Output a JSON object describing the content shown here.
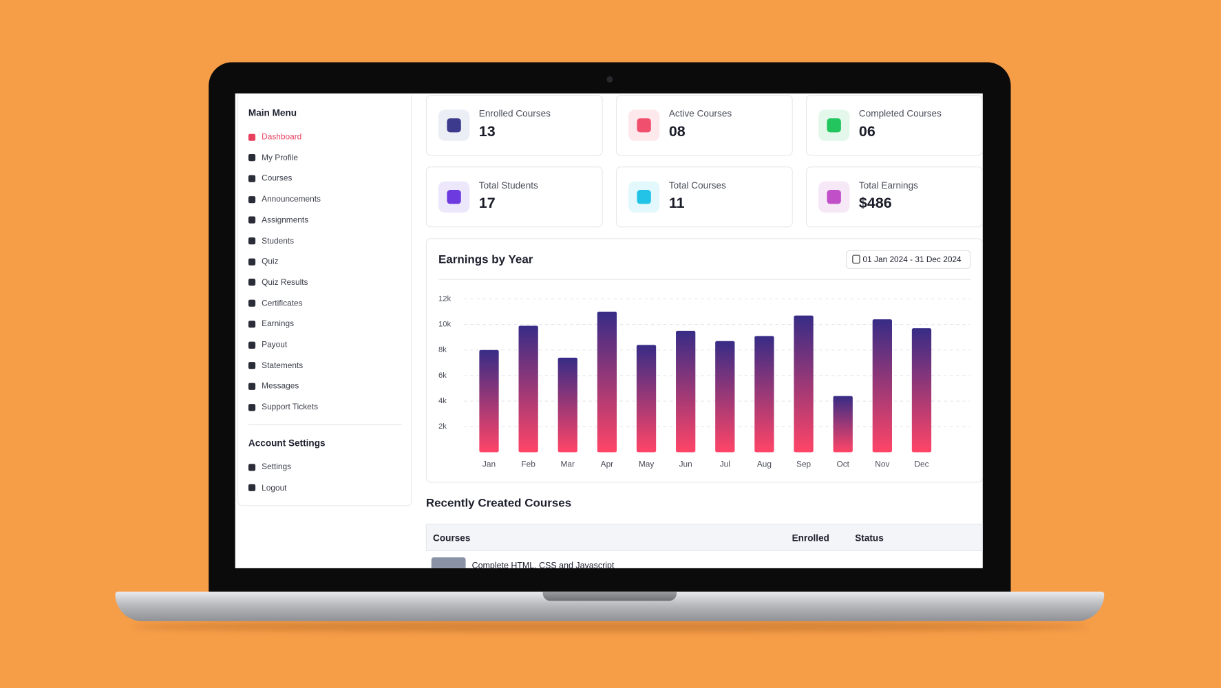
{
  "sidebar": {
    "main_menu_title": "Main Menu",
    "main_menu": [
      "Dashboard",
      "My Profile",
      "Courses",
      "Announcements",
      "Assignments",
      "Students",
      "Quiz",
      "Quiz Results",
      "Certificates",
      "Earnings",
      "Payout",
      "Statements",
      "Messages",
      "Support Tickets"
    ],
    "account_title": "Account Settings",
    "account_menu": [
      "Settings",
      "Logout"
    ]
  },
  "stats": [
    {
      "label": "Enrolled Courses",
      "value": "13"
    },
    {
      "label": "Active Courses",
      "value": "08"
    },
    {
      "label": "Completed Courses",
      "value": "06"
    },
    {
      "label": "Total Students",
      "value": "17"
    },
    {
      "label": "Total Courses",
      "value": "11"
    },
    {
      "label": "Total Earnings",
      "value": "$486"
    }
  ],
  "chart_data": {
    "type": "bar",
    "title": "Earnings by Year",
    "date_range": "01 Jan 2024 - 31 Dec 2024",
    "categories": [
      "Jan",
      "Feb",
      "Mar",
      "Apr",
      "May",
      "Jun",
      "Jul",
      "Aug",
      "Sep",
      "Oct",
      "Nov",
      "Dec"
    ],
    "values": [
      8000,
      9900,
      7400,
      11000,
      8400,
      9500,
      8700,
      9100,
      10700,
      4400,
      10400,
      9700
    ],
    "colors": [
      "#372c86",
      "#ff4567"
    ],
    "ylim": [
      0,
      12000
    ],
    "yticks": [
      {
        "value": 2000,
        "label": "2k"
      },
      {
        "value": 4000,
        "label": "4k"
      },
      {
        "value": 6000,
        "label": "6k"
      },
      {
        "value": 8000,
        "label": "8k"
      },
      {
        "value": 10000,
        "label": "10k"
      },
      {
        "value": 12000,
        "label": "12k"
      }
    ],
    "grid": true
  },
  "recent": {
    "title": "Recently Created Courses",
    "columns": [
      "Courses",
      "Enrolled",
      "Status"
    ],
    "rows": [
      [
        "Complete HTML, CSS and Javascript"
      ]
    ]
  }
}
